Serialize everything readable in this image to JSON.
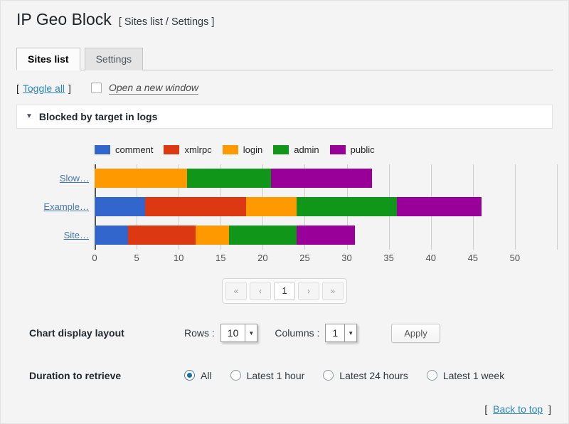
{
  "window": {
    "title": "IP Geo Block",
    "breadcrumb": "[ Sites list / Settings ]"
  },
  "tabs": [
    {
      "label": "Sites list",
      "active": true
    },
    {
      "label": "Settings",
      "active": false
    }
  ],
  "toolbar": {
    "bracket_l": "[",
    "bracket_r": "]",
    "toggle_all_label": "Toggle all",
    "open_new_window_label": "Open a new window",
    "open_new_window_checked": false
  },
  "panel": {
    "title": "Blocked by target in logs"
  },
  "icons": {
    "triangle_down": "▼"
  },
  "chart_data": {
    "type": "bar",
    "stacked": true,
    "orientation": "horizontal",
    "title": "Blocked by target in logs",
    "categories": [
      "Slow…",
      "Example…",
      "Site…"
    ],
    "series": [
      {
        "name": "comment",
        "color": "#3366CC",
        "values": [
          0,
          6,
          4
        ]
      },
      {
        "name": "xmlrpc",
        "color": "#DC3912",
        "values": [
          0,
          12,
          8
        ]
      },
      {
        "name": "login",
        "color": "#FF9900",
        "values": [
          11,
          6,
          4
        ]
      },
      {
        "name": "admin",
        "color": "#109618",
        "values": [
          10,
          12,
          8
        ]
      },
      {
        "name": "public",
        "color": "#990099",
        "values": [
          12,
          10,
          7
        ]
      }
    ],
    "totals": [
      33,
      46,
      31
    ],
    "xlim": [
      0,
      55
    ],
    "x_ticks": [
      0,
      5,
      10,
      15,
      20,
      25,
      30,
      35,
      40,
      45,
      50
    ],
    "gridline_step": 5,
    "grid": true,
    "legend_position": "top",
    "category_labels_are_links": true
  },
  "pagination": {
    "buttons": [
      {
        "name": "first",
        "label": "«",
        "current": false
      },
      {
        "name": "prev",
        "label": "‹",
        "current": false
      },
      {
        "name": "page-1",
        "label": "1",
        "current": true
      },
      {
        "name": "next",
        "label": "›",
        "current": false
      },
      {
        "name": "last",
        "label": "»",
        "current": false
      }
    ]
  },
  "layout_controls": {
    "label": "Chart display layout",
    "rows_label": "Rows :",
    "rows_value": "10",
    "columns_label": "Columns :",
    "columns_value": "1",
    "apply_label": "Apply"
  },
  "duration_controls": {
    "label": "Duration to retrieve",
    "options": [
      {
        "label": "All",
        "selected": true
      },
      {
        "label": "Latest 1 hour",
        "selected": false
      },
      {
        "label": "Latest 24 hours",
        "selected": false
      },
      {
        "label": "Latest 1 week",
        "selected": false
      }
    ]
  },
  "footer": {
    "bracket_l": "[",
    "bracket_r": "]",
    "back_to_top_label": "Back to top"
  },
  "colors": {
    "link": "#2b87ba",
    "category_link": "#4677aa",
    "radio_selected": "#1d6fa5",
    "page_background": "#f4f4f4",
    "panel_header_background": "#ffffff"
  }
}
